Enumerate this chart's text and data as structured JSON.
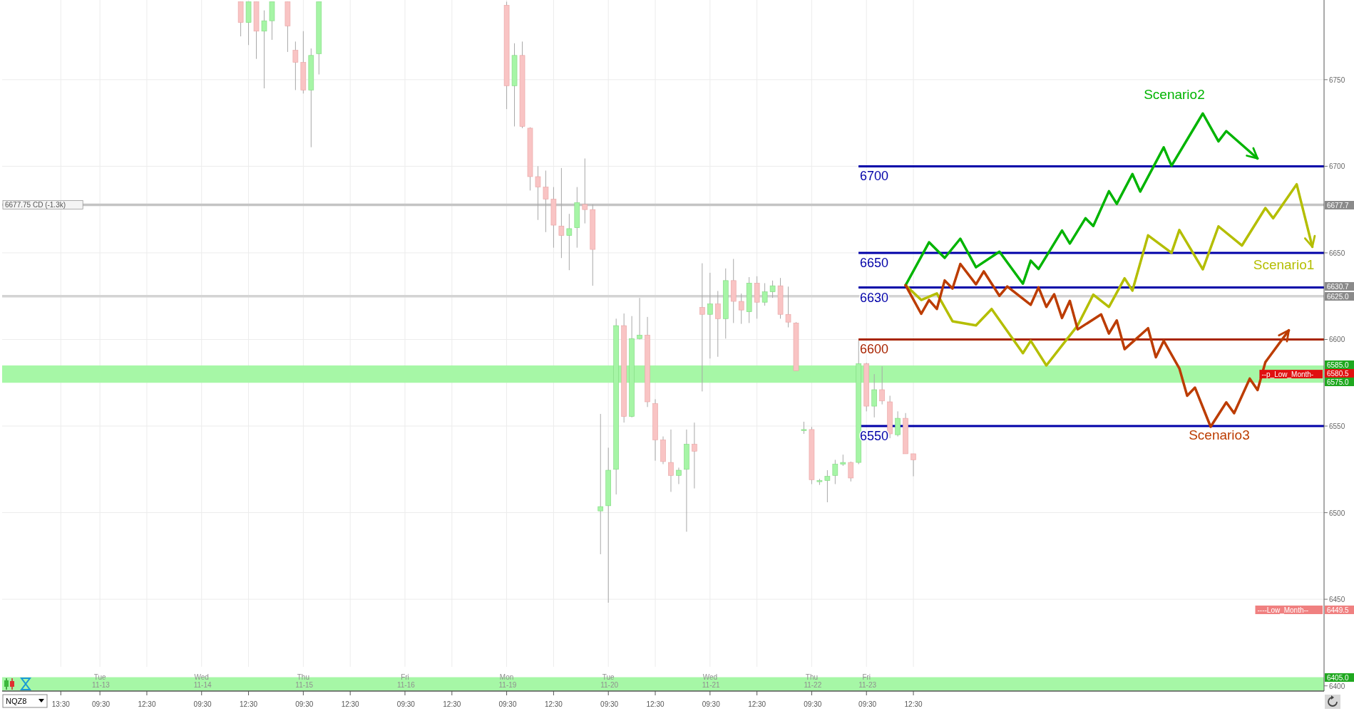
{
  "chart_data": {
    "type": "candlestick",
    "categories": [
      null,
      null,
      null,
      null,
      null,
      null,
      null,
      "13:30",
      null,
      null,
      null,
      null,
      "Tue 11-13 09:30",
      null,
      null,
      null,
      null,
      null,
      "12:30",
      null,
      null,
      null,
      null,
      null,
      null,
      "Wed 11-14 09:30",
      null,
      null,
      null,
      null,
      null,
      "12:30",
      null,
      null,
      null,
      null,
      null,
      null,
      "Thu 11-15 09:30",
      null,
      null,
      null,
      null,
      null,
      "12:30",
      null,
      null,
      null,
      null,
      null,
      null,
      "Fri 11-16 09:30",
      null,
      null,
      null,
      null,
      null,
      "12:30",
      null,
      null,
      null,
      null,
      null,
      null,
      "Mon 11-19 09:30",
      null,
      null,
      null,
      null,
      null,
      "12:30",
      null,
      null,
      null,
      null,
      null,
      null,
      "Tue 11-20 09:30",
      null,
      null,
      null,
      null,
      null,
      "12:30",
      null,
      null,
      null,
      null,
      null,
      null,
      "Wed 11-21 09:30",
      null,
      null,
      null,
      null,
      null,
      "12:30",
      null,
      null,
      null,
      null,
      null,
      null,
      "Thu 11-22 09:30",
      null,
      null,
      null,
      null,
      null,
      null,
      "Fri 11-23 09:30",
      null,
      null,
      null,
      null,
      null,
      "12:30",
      null,
      null,
      null,
      null,
      null,
      null,
      null,
      null,
      null,
      null,
      null,
      null,
      null,
      null,
      null,
      null,
      null,
      null,
      null,
      null,
      null,
      null,
      null,
      null,
      null,
      null,
      null,
      null,
      null,
      null,
      null,
      null,
      null,
      null,
      null,
      null,
      null,
      null,
      null,
      null,
      null,
      null,
      null,
      null,
      null,
      null,
      null,
      null,
      null,
      null,
      null,
      null
    ],
    "ylim": [
      6397,
      6796
    ],
    "yticks": [
      6400,
      6450,
      6500,
      6550,
      6600,
      6650,
      6700,
      6750
    ],
    "grid": true,
    "ohlc": [
      null,
      null,
      null,
      null,
      null,
      null,
      null,
      null,
      null,
      null,
      null,
      null,
      null,
      null,
      null,
      null,
      null,
      null,
      null,
      null,
      null,
      null,
      null,
      null,
      null,
      null,
      null,
      null,
      null,
      null,
      [
        6795,
        6795,
        6775,
        6783
      ],
      [
        6783,
        6795,
        6770,
        6795
      ],
      [
        6795,
        6795,
        6762,
        6778
      ],
      [
        6778,
        6790,
        6745,
        6784
      ],
      [
        6784,
        6795,
        6773,
        6795
      ],
      null,
      [
        6795,
        6795,
        6766,
        6781
      ],
      [
        6767,
        6772,
        6744,
        6760
      ],
      [
        6760,
        6778,
        6742,
        6744
      ],
      [
        6744,
        6768,
        6711,
        6764
      ],
      [
        6765,
        6795,
        6753,
        6795
      ],
      null,
      null,
      null,
      null,
      null,
      null,
      null,
      null,
      null,
      null,
      null,
      null,
      null,
      null,
      null,
      null,
      null,
      null,
      null,
      null,
      null,
      null,
      null,
      [
        6793,
        6795,
        6733,
        6746.5
      ],
      [
        6746.5,
        6771,
        6723,
        6764
      ],
      [
        6764,
        6772,
        6722,
        6723
      ],
      [
        6722,
        6722.5,
        6686,
        6694
      ],
      [
        6694,
        6700,
        6669,
        6688
      ],
      [
        6688,
        6697.5,
        6662,
        6681
      ],
      [
        6681,
        6688,
        6653,
        6666
      ],
      [
        6665.5,
        6699,
        6647,
        6660
      ],
      [
        6660,
        6672.5,
        6640,
        6664
      ],
      [
        6664.5,
        6688,
        6653,
        6679
      ],
      [
        6678,
        6704.5,
        6667,
        6675
      ],
      [
        6675,
        6678,
        6631,
        6652
      ],
      [
        6501,
        6557,
        6476,
        6503.5
      ],
      [
        6504,
        6537.5,
        6448,
        6524.5
      ],
      [
        6525,
        6612,
        6510.5,
        6608
      ],
      [
        6608,
        6615,
        6552,
        6555.5
      ],
      [
        6555.5,
        6613.5,
        6555,
        6600.5
      ],
      [
        6600.5,
        6624,
        6600,
        6602.5
      ],
      [
        6602.5,
        6613,
        6561,
        6564
      ],
      [
        6563,
        6565.5,
        6530,
        6542
      ],
      [
        6542,
        6544,
        6528,
        6529.5
      ],
      [
        6529,
        6548,
        6512,
        6521.5
      ],
      [
        6521.5,
        6526,
        6516.5,
        6524.5
      ],
      [
        6525,
        6548,
        6489,
        6539.5
      ],
      [
        6539.5,
        6552,
        6514,
        6535.5
      ],
      [
        6618.5,
        6644,
        6570,
        6614.5
      ],
      [
        6614.5,
        6638.5,
        6589,
        6620.5
      ],
      [
        6620.5,
        6628,
        6590,
        6612
      ],
      [
        6612,
        6641,
        6600.5,
        6634
      ],
      [
        6634,
        6646.5,
        6609.5,
        6622
      ],
      [
        6622,
        6626.5,
        6609,
        6617
      ],
      [
        6616,
        6636,
        6609.5,
        6632.5
      ],
      [
        6632.5,
        6636.5,
        6612,
        6621.5
      ],
      [
        6621.5,
        6632.5,
        6619.5,
        6627.5
      ],
      [
        6627.5,
        6634,
        6624,
        6631
      ],
      [
        6631,
        6635.5,
        6612,
        6614.5
      ],
      [
        6614.5,
        6630.5,
        6607,
        6610
      ],
      [
        6609.5,
        6610,
        6582,
        6582
      ],
      [
        6548,
        6552.5,
        6545.5,
        6548
      ],
      [
        6548,
        6549.5,
        6516.5,
        6519
      ],
      [
        6518.5,
        6519.5,
        6516,
        6518.5
      ],
      [
        6518.5,
        6524.5,
        6506,
        6521
      ],
      [
        6521.5,
        6530.5,
        6516.5,
        6528
      ],
      [
        6528,
        6533.5,
        6527,
        6529
      ],
      [
        6529,
        6529.5,
        6518,
        6520
      ],
      [
        6529,
        6599.5,
        6528,
        6586
      ],
      [
        6586,
        6586.5,
        6558.5,
        6561.5
      ],
      [
        6561.5,
        6580,
        6555,
        6571
      ],
      [
        6571,
        6584.5,
        6562.5,
        6564.5
      ],
      [
        6564,
        6567.5,
        6543,
        6545.5
      ],
      [
        6545,
        6558.5,
        6544,
        6554.5
      ],
      [
        6554.5,
        6557.5,
        6534,
        6534
      ],
      [
        6534,
        6534,
        6521,
        6530.5
      ],
      null,
      null,
      null,
      null,
      null,
      null,
      null,
      null,
      null,
      null,
      null,
      null,
      null,
      null,
      null,
      null,
      null,
      null,
      null,
      null,
      null,
      null,
      null,
      null,
      null,
      null,
      null,
      null,
      null,
      null,
      null,
      null,
      null,
      null,
      null,
      null,
      null,
      null,
      null,
      null,
      null,
      null,
      null,
      null,
      null,
      null,
      null,
      null,
      null,
      null,
      null,
      null
    ],
    "series": [
      {
        "name": "Scenario1",
        "type": "line",
        "color": "#b4be00",
        "values": [
          null,
          null,
          null,
          null,
          null,
          null,
          null,
          null,
          null,
          null,
          null,
          null,
          null,
          null,
          null,
          null,
          null,
          null,
          null,
          null,
          null,
          null,
          null,
          null,
          null,
          null,
          null,
          null,
          null,
          null,
          null,
          null,
          null,
          null,
          null,
          null,
          null,
          null,
          null,
          null,
          null,
          null,
          null,
          null,
          null,
          null,
          null,
          null,
          null,
          null,
          null,
          null,
          null,
          null,
          null,
          null,
          null,
          null,
          null,
          null,
          null,
          null,
          null,
          null,
          null,
          null,
          null,
          null,
          null,
          null,
          null,
          null,
          null,
          null,
          null,
          null,
          null,
          null,
          null,
          null,
          null,
          null,
          null,
          null,
          null,
          null,
          null,
          null,
          null,
          null,
          null,
          null,
          null,
          null,
          null,
          null,
          null,
          null,
          null,
          null,
          null,
          null,
          null,
          null,
          null,
          null,
          null,
          null,
          null,
          null,
          null,
          null,
          null,
          null,
          null,
          6631.3,
          null,
          6622.8,
          null,
          6626.6,
          null,
          6610.5,
          null,
          null,
          6608.1,
          null,
          6617.6,
          null,
          null,
          null,
          6592.1,
          6599.2,
          null,
          6585.0,
          null,
          null,
          null,
          6608.1,
          null,
          6625.9,
          null,
          6618.8,
          null,
          6635.3,
          6628.2,
          null,
          6660.1,
          null,
          null,
          6650.0,
          6663.2,
          null,
          null,
          6640.5,
          null,
          6665.3,
          null,
          null,
          6654.2,
          null,
          null,
          6675.9,
          6670.0,
          null,
          null,
          6689.6,
          null,
          6653.5,
          null
        ]
      },
      {
        "name": "Scenario2",
        "type": "line",
        "color": "#00b400",
        "values": [
          null,
          null,
          null,
          null,
          null,
          null,
          null,
          null,
          null,
          null,
          null,
          null,
          null,
          null,
          null,
          null,
          null,
          null,
          null,
          null,
          null,
          null,
          null,
          null,
          null,
          null,
          null,
          null,
          null,
          null,
          null,
          null,
          null,
          null,
          null,
          null,
          null,
          null,
          null,
          null,
          null,
          null,
          null,
          null,
          null,
          null,
          null,
          null,
          null,
          null,
          null,
          null,
          null,
          null,
          null,
          null,
          null,
          null,
          null,
          null,
          null,
          null,
          null,
          null,
          null,
          null,
          null,
          null,
          null,
          null,
          null,
          null,
          null,
          null,
          null,
          null,
          null,
          null,
          null,
          null,
          null,
          null,
          null,
          null,
          null,
          null,
          null,
          null,
          null,
          null,
          null,
          null,
          null,
          null,
          null,
          null,
          null,
          null,
          null,
          null,
          null,
          null,
          null,
          null,
          null,
          null,
          null,
          null,
          null,
          null,
          null,
          null,
          null,
          null,
          null,
          6631.3,
          null,
          null,
          6656.1,
          null,
          6647.1,
          null,
          6658.2,
          null,
          6641.7,
          null,
          null,
          6650.7,
          null,
          null,
          6632.2,
          6645.5,
          6640.7,
          null,
          null,
          6662.9,
          6655.4,
          null,
          6670.0,
          6665.5,
          null,
          6685.6,
          6678.3,
          null,
          6695.5,
          6685.4,
          null,
          null,
          6710.9,
          6700.3,
          null,
          null,
          null,
          6730.5,
          null,
          6714.4,
          6720.3,
          null,
          null,
          null,
          6704.5,
          null,
          null,
          null,
          null,
          null,
          null,
          null,
          null
        ]
      },
      {
        "name": "Scenario3",
        "type": "line",
        "color": "#bc3c00",
        "values": [
          null,
          null,
          null,
          null,
          null,
          null,
          null,
          null,
          null,
          null,
          null,
          null,
          null,
          null,
          null,
          null,
          null,
          null,
          null,
          null,
          null,
          null,
          null,
          null,
          null,
          null,
          null,
          null,
          null,
          null,
          null,
          null,
          null,
          null,
          null,
          null,
          null,
          null,
          null,
          null,
          null,
          null,
          null,
          null,
          null,
          null,
          null,
          null,
          null,
          null,
          null,
          null,
          null,
          null,
          null,
          null,
          null,
          null,
          null,
          null,
          null,
          null,
          null,
          null,
          null,
          null,
          null,
          null,
          null,
          null,
          null,
          null,
          null,
          null,
          null,
          null,
          null,
          null,
          null,
          null,
          null,
          null,
          null,
          null,
          null,
          null,
          null,
          null,
          null,
          null,
          null,
          null,
          null,
          null,
          null,
          null,
          null,
          null,
          null,
          null,
          null,
          null,
          null,
          null,
          null,
          null,
          null,
          null,
          null,
          null,
          null,
          null,
          null,
          null,
          null,
          6631.3,
          null,
          6614.8,
          6622.8,
          6617.6,
          6634.1,
          6629.4,
          6643.6,
          null,
          6631.8,
          6639.3,
          null,
          6625.2,
          6630.6,
          null,
          null,
          6620.0,
          6630.1,
          6618.8,
          6626.1,
          6612.4,
          6622.3,
          6605.8,
          null,
          null,
          6614.5,
          6603.4,
          6611.0,
          6594.4,
          null,
          null,
          6606.5,
          6589.7,
          6599.2,
          null,
          6583.3,
          6567.5,
          6572.2,
          null,
          6549.6,
          null,
          6563.7,
          6557.4,
          null,
          6577.4,
          6570.8,
          6586.9,
          null,
          null,
          6605.3,
          null,
          null,
          null,
          null
        ]
      }
    ],
    "ref_lines": [
      {
        "axis": "y",
        "value": 6700,
        "label": "6700",
        "color": "#0000a8"
      },
      {
        "axis": "y",
        "value": 6650,
        "label": "6650",
        "color": "#0000a8"
      },
      {
        "axis": "y",
        "value": 6630,
        "label": "6630",
        "color": "#0000a8"
      },
      {
        "axis": "y",
        "value": 6600,
        "label": "6600",
        "color": "#a82400"
      },
      {
        "axis": "y",
        "value": 6550,
        "label": "6550",
        "color": "#0000a8"
      },
      {
        "axis": "y",
        "value": 6677.75,
        "label": "6677.75 CD (-1.3k)",
        "color": "#c4c4c4"
      },
      {
        "axis": "y",
        "value": 6625,
        "color": "#d4d4d4"
      }
    ],
    "bands": [
      {
        "axis": "y",
        "from": 6575,
        "to": 6585,
        "color": "#a6f7a6",
        "label": "--p_Low_Month-"
      },
      {
        "axis": "y",
        "from": 6397,
        "to": 6405,
        "color": "#a6f7a6"
      }
    ],
    "annotations": [
      "6677.7",
      "6630.7",
      "6625.0",
      "6585.0",
      "6575.0",
      "6580.5",
      "6405.0",
      "----Low_Month--",
      "6449.5",
      "NQZ8"
    ]
  }
}
